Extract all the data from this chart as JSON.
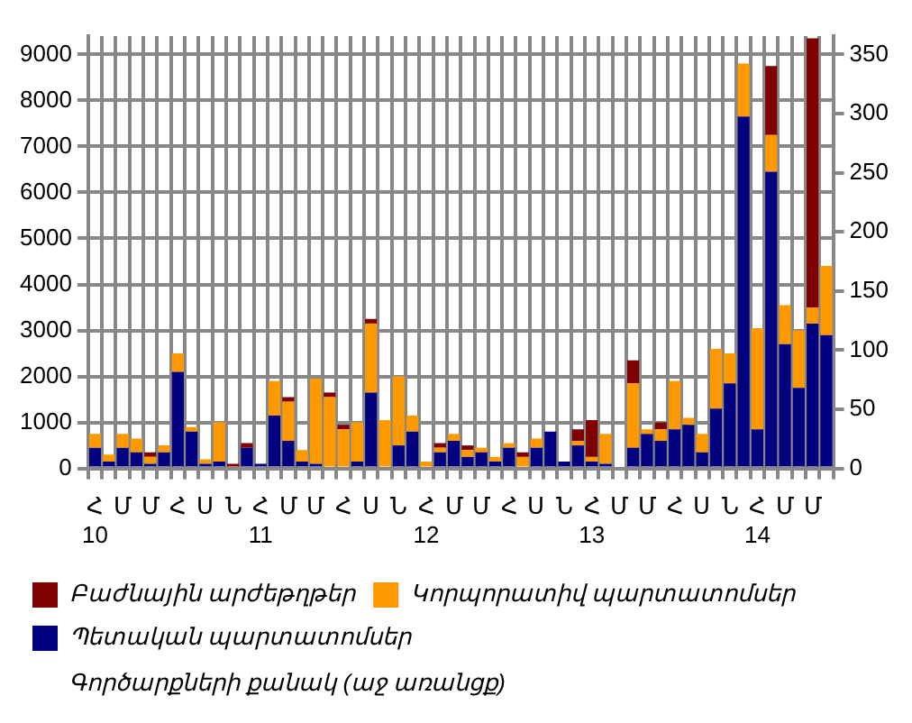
{
  "chart_data": {
    "type": "bar",
    "stacked": true,
    "categories": [
      "Հ\n10",
      null,
      "Մ",
      null,
      "Մ",
      null,
      "Հ",
      null,
      "Ս",
      null,
      "Ն",
      null,
      "Հ\n11",
      null,
      "Մ",
      null,
      "Մ",
      null,
      "Հ",
      null,
      "Ս",
      null,
      "Ն",
      null,
      "Հ\n12",
      null,
      "Մ",
      null,
      "Մ",
      null,
      "Հ",
      null,
      "Ս",
      null,
      "Ն",
      null,
      "Հ\n13",
      null,
      "Մ",
      null,
      "Մ",
      null,
      "Հ",
      null,
      "Ս",
      null,
      "Ն",
      null,
      "Հ\n14",
      null,
      "Մ",
      null,
      "Մ",
      null
    ],
    "series": [
      {
        "name": "Պետական պարտատոմսեր",
        "color": "#000080",
        "values": [
          450,
          150,
          450,
          350,
          100,
          350,
          2100,
          800,
          100,
          150,
          0,
          450,
          100,
          1150,
          600,
          150,
          100,
          0,
          0,
          150,
          1650,
          0,
          500,
          800,
          0,
          350,
          600,
          250,
          350,
          150,
          450,
          0,
          450,
          800,
          150,
          500,
          150,
          100,
          0,
          450,
          750,
          600,
          850,
          950,
          350,
          1300,
          1850,
          7650,
          850,
          6450,
          2700,
          1750,
          3150,
          2900
        ]
      },
      {
        "name": "Կորպորատիվ պարտատոմսեր",
        "color": "#ff9900",
        "values": [
          300,
          150,
          300,
          300,
          150,
          150,
          400,
          100,
          100,
          850,
          0,
          0,
          0,
          750,
          850,
          250,
          1850,
          1550,
          850,
          850,
          1500,
          1050,
          1500,
          350,
          150,
          100,
          150,
          150,
          100,
          100,
          100,
          250,
          200,
          0,
          0,
          100,
          100,
          650,
          0,
          1400,
          100,
          250,
          1050,
          150,
          400,
          1300,
          650,
          1150,
          2200,
          800,
          850,
          1250,
          350,
          1500
        ]
      },
      {
        "name": "Բաժնային արժեթղթեր",
        "color": "#800000",
        "values": [
          0,
          0,
          0,
          0,
          100,
          0,
          0,
          0,
          0,
          0,
          100,
          100,
          0,
          0,
          100,
          0,
          0,
          100,
          100,
          0,
          100,
          0,
          0,
          0,
          0,
          100,
          0,
          100,
          0,
          0,
          0,
          100,
          0,
          0,
          0,
          250,
          800,
          0,
          0,
          500,
          0,
          150,
          0,
          0,
          0,
          0,
          0,
          0,
          0,
          1500,
          0,
          0,
          5850,
          0
        ]
      }
    ],
    "ylim": [
      0,
      9400
    ],
    "yticks": [
      0,
      1000,
      2000,
      3000,
      4000,
      5000,
      6000,
      7000,
      8000,
      9000
    ],
    "y2lim": [
      0,
      365.6
    ],
    "y2ticks": [
      0,
      50,
      100,
      150,
      200,
      250,
      300,
      350
    ],
    "grid": true,
    "legend": "bottom",
    "annotations": [
      "Գործարքների քանակ (աջ առանցք)"
    ]
  }
}
